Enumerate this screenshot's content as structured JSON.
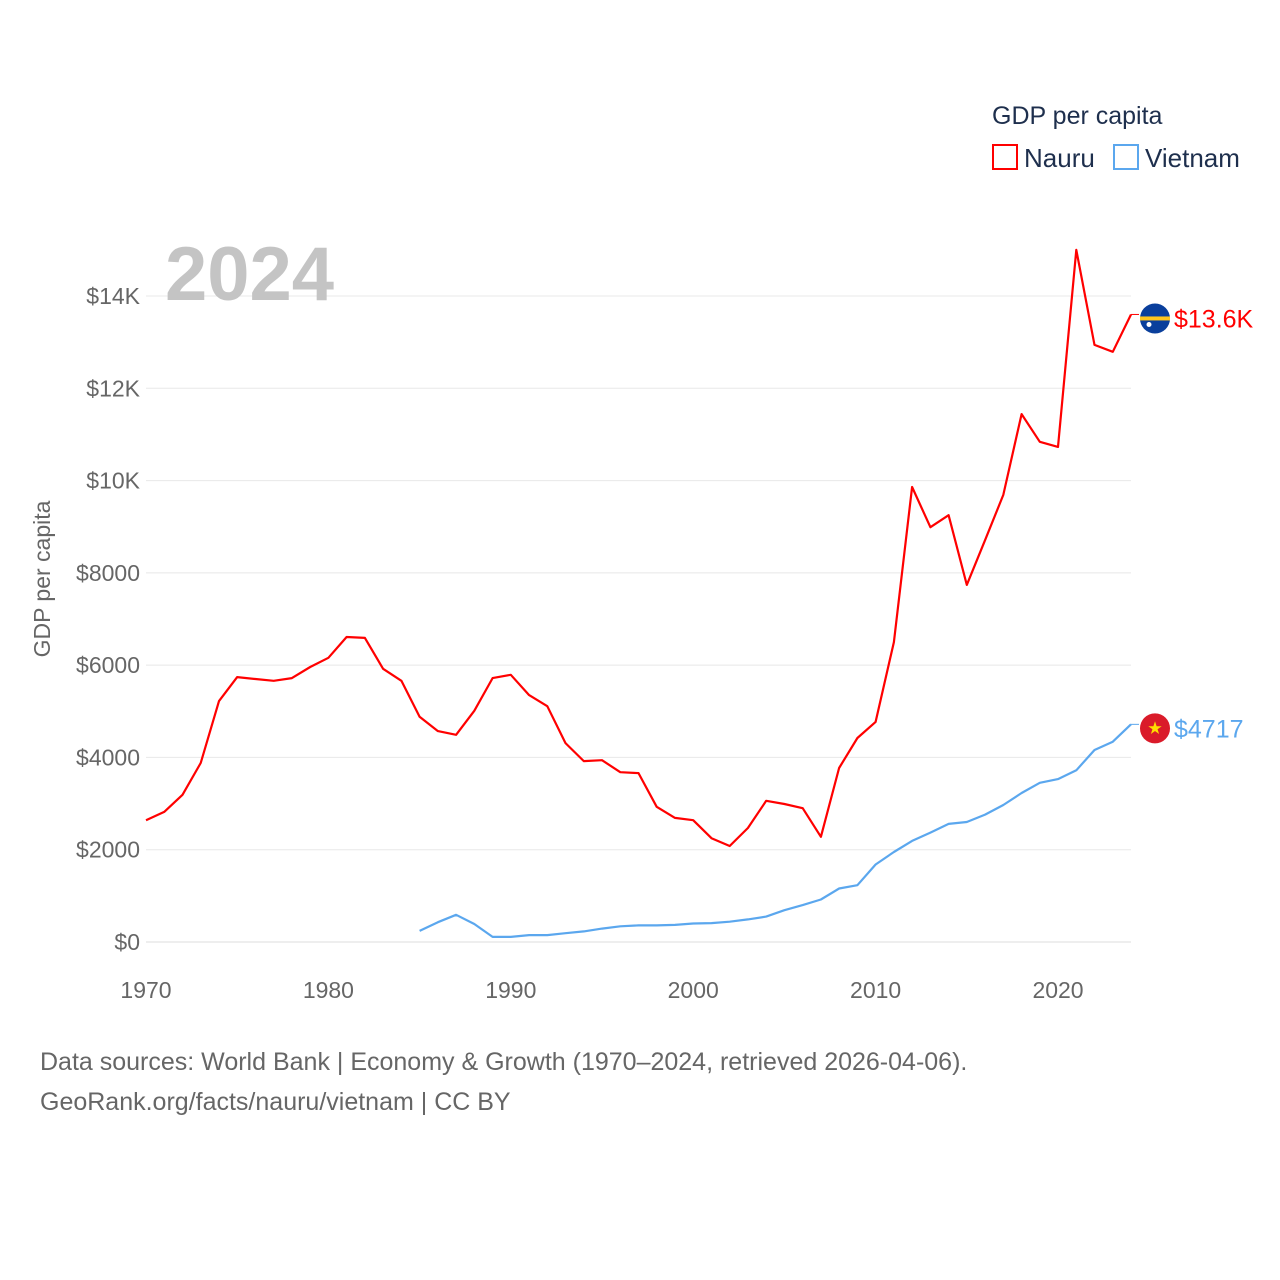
{
  "chart_data": {
    "type": "line",
    "title": "GDP per capita",
    "year_label": "2024",
    "xlabel": "",
    "ylabel": "GDP per capita",
    "xlim": [
      1970,
      2024
    ],
    "ylim": [
      0,
      14000
    ],
    "x_ticks": [
      1970,
      1980,
      1990,
      2000,
      2010,
      2020
    ],
    "x_tick_labels": [
      "1970",
      "1980",
      "1990",
      "2000",
      "2010",
      "2020"
    ],
    "y_ticks": [
      0,
      2000,
      4000,
      6000,
      8000,
      10000,
      12000,
      14000
    ],
    "y_tick_labels": [
      "$0",
      "$2000",
      "$4000",
      "$6000",
      "$8000",
      "$10K",
      "$12K",
      "$14K"
    ],
    "grid": true,
    "legend_position": "top-right",
    "series": [
      {
        "name": "Nauru",
        "color": "#ff0000",
        "end_label": "$13.6K",
        "x": [
          1970,
          1971,
          1972,
          1973,
          1974,
          1975,
          1976,
          1977,
          1978,
          1979,
          1980,
          1981,
          1982,
          1983,
          1984,
          1985,
          1986,
          1987,
          1988,
          1989,
          1990,
          1991,
          1992,
          1993,
          1994,
          1995,
          1996,
          1997,
          1998,
          1999,
          2000,
          2001,
          2002,
          2003,
          2004,
          2005,
          2006,
          2007,
          2008,
          2009,
          2010,
          2011,
          2012,
          2013,
          2014,
          2015,
          2016,
          2017,
          2018,
          2019,
          2020,
          2021,
          2022,
          2023,
          2024
        ],
        "values": [
          2640,
          2820,
          3190,
          3880,
          5220,
          5740,
          5700,
          5660,
          5720,
          5960,
          6160,
          6610,
          6590,
          5920,
          5660,
          4880,
          4570,
          4490,
          5010,
          5720,
          5790,
          5350,
          5110,
          4310,
          3920,
          3940,
          3680,
          3660,
          2930,
          2690,
          2640,
          2250,
          2080,
          2470,
          3060,
          2990,
          2900,
          2280,
          3770,
          4420,
          4770,
          6500,
          9860,
          8990,
          9250,
          7740,
          8710,
          9690,
          11440,
          10840,
          10730,
          15000,
          12940,
          12790,
          13600
        ]
      },
      {
        "name": "Vietnam",
        "color": "#5ba7ee",
        "end_label": "$4717",
        "x": [
          1985,
          1986,
          1987,
          1988,
          1989,
          1990,
          1991,
          1992,
          1993,
          1994,
          1995,
          1996,
          1997,
          1998,
          1999,
          2000,
          2001,
          2002,
          2003,
          2004,
          2005,
          2006,
          2007,
          2008,
          2009,
          2010,
          2011,
          2012,
          2013,
          2014,
          2015,
          2016,
          2017,
          2018,
          2019,
          2020,
          2021,
          2022,
          2023,
          2024
        ],
        "values": [
          240,
          430,
          590,
          390,
          110,
          110,
          150,
          150,
          190,
          230,
          290,
          340,
          360,
          360,
          370,
          400,
          410,
          440,
          490,
          550,
          690,
          800,
          920,
          1160,
          1230,
          1680,
          1950,
          2190,
          2370,
          2560,
          2600,
          2760,
          2970,
          3230,
          3450,
          3530,
          3720,
          4160,
          4340,
          4717
        ]
      }
    ]
  },
  "footer": {
    "line1": "Data sources: World Bank | Economy & Growth (1970–2024, retrieved 2026-04-06).",
    "line2": "GeoRank.org/facts/nauru/vietnam | CC BY"
  }
}
